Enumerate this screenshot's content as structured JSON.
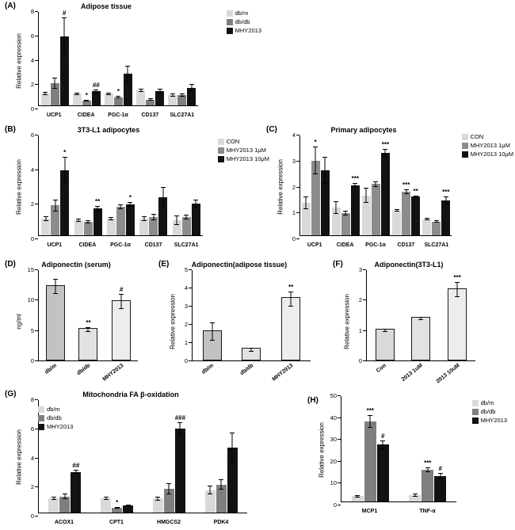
{
  "figure": {
    "background": "#ffffff",
    "series_colors": {
      "light_gray": "#d9d9d9",
      "mid_gray": "#7f7f7f",
      "black": "#121212"
    }
  },
  "chart_data": [
    {
      "panel": "(A)",
      "type": "bar",
      "title": "Adipose tissue",
      "ylabel": "Relative expression",
      "ylim": [
        0,
        8
      ],
      "yticks": [
        0,
        2,
        4,
        6,
        8
      ],
      "categories": [
        "UCP1",
        "CIDEA",
        "PGC-1α",
        "CD137",
        "SLC27A1"
      ],
      "legend": {
        "position": "right"
      },
      "series": [
        {
          "name": "db/m",
          "color": "#d9d9d9",
          "values": [
            1.0,
            1.0,
            1.0,
            1.3,
            0.9
          ],
          "errors": [
            0.15,
            0.1,
            0.1,
            0.15,
            0.12
          ],
          "annotations": [
            "",
            "",
            "",
            "",
            ""
          ]
        },
        {
          "name": "db/db",
          "color": "#7f7f7f",
          "values": [
            1.9,
            0.4,
            0.7,
            0.5,
            0.9
          ],
          "errors": [
            0.45,
            0.05,
            0.1,
            0.08,
            0.15
          ],
          "annotations": [
            "",
            "*",
            "*",
            "",
            ""
          ]
        },
        {
          "name": "MHY2013",
          "color": "#121212",
          "values": [
            5.9,
            1.2,
            2.7,
            1.2,
            1.5
          ],
          "errors": [
            1.6,
            0.15,
            0.7,
            0.25,
            0.3
          ],
          "annotations": [
            "#",
            "##",
            "",
            "",
            ""
          ]
        }
      ]
    },
    {
      "panel": "(B)",
      "type": "bar",
      "title": "3T3-L1 adipocytes",
      "ylabel": "Relative expression",
      "ylim": [
        0,
        6
      ],
      "yticks": [
        0,
        2,
        4,
        6
      ],
      "categories": [
        "UCP1",
        "CIDEA",
        "PGC-1α",
        "CD137",
        "SLC27A1"
      ],
      "legend": {
        "position": "right"
      },
      "series": [
        {
          "name": "CON",
          "color": "#d9d9d9",
          "values": [
            1.0,
            0.9,
            1.0,
            1.0,
            0.9
          ],
          "errors": [
            0.15,
            0.1,
            0.1,
            0.15,
            0.3
          ],
          "annotations": [
            "",
            "",
            "",
            "",
            ""
          ]
        },
        {
          "name": "MHY2013 1μM",
          "color": "#8c8c8c",
          "values": [
            1.8,
            0.8,
            1.7,
            1.1,
            1.1
          ],
          "errors": [
            0.35,
            0.1,
            0.15,
            0.2,
            0.15
          ],
          "annotations": [
            "",
            "",
            "",
            "",
            ""
          ]
        },
        {
          "name": "MHY2013 10μM",
          "color": "#121212",
          "values": [
            3.9,
            1.6,
            1.85,
            2.3,
            1.9
          ],
          "errors": [
            0.8,
            0.15,
            0.15,
            0.6,
            0.25
          ],
          "annotations": [
            "*",
            "**",
            "*",
            "",
            ""
          ]
        }
      ]
    },
    {
      "panel": "(C)",
      "type": "bar",
      "title": "Primary adipocytes",
      "ylabel": "Relative expression",
      "ylim": [
        0,
        4
      ],
      "yticks": [
        0,
        1,
        2,
        3,
        4
      ],
      "categories": [
        "UCP1",
        "CIDEA",
        "PGC-1α",
        "CD137",
        "SLC27A1"
      ],
      "legend": {
        "position": "right"
      },
      "series": [
        {
          "name": "CON",
          "color": "#d9d9d9",
          "values": [
            1.3,
            1.1,
            1.6,
            1.0,
            0.65
          ],
          "errors": [
            0.25,
            0.25,
            0.3,
            0.05,
            0.05
          ],
          "annotations": [
            "",
            "",
            "",
            "",
            ""
          ]
        },
        {
          "name": "MHY2013 1μM",
          "color": "#8c8c8c",
          "values": [
            3.0,
            0.9,
            2.05,
            1.75,
            0.55
          ],
          "errors": [
            0.55,
            0.1,
            0.1,
            0.1,
            0.05
          ],
          "annotations": [
            "*",
            "",
            "",
            "***",
            ""
          ]
        },
        {
          "name": "MHY2013 10μM",
          "color": "#121212",
          "values": [
            2.6,
            2.0,
            3.3,
            1.55,
            1.4
          ],
          "errors": [
            0.55,
            0.1,
            0.15,
            0.05,
            0.15
          ],
          "annotations": [
            "",
            "***",
            "***",
            "**",
            "***"
          ]
        }
      ]
    },
    {
      "panel": "(D)",
      "type": "bar",
      "title": "Adiponectin (serum)",
      "ylabel": "ng/ml",
      "ylim": [
        0,
        15
      ],
      "yticks": [
        0,
        5,
        10,
        15
      ],
      "xlabel_rotate": true,
      "bars": [
        {
          "label": "db/m",
          "value": 12.3,
          "error": 1.2,
          "annotation": "",
          "pattern": "diag",
          "color": "#c2c2c2"
        },
        {
          "label": "db/db",
          "value": 5.1,
          "error": 0.4,
          "annotation": "**",
          "pattern": "cross",
          "color": "#e2e2e2"
        },
        {
          "label": "MHY2013",
          "value": 9.8,
          "error": 1.2,
          "annotation": "#",
          "pattern": "hlines",
          "color": "#ededed"
        }
      ]
    },
    {
      "panel": "(E)",
      "type": "bar",
      "title": "Adiponectin(adipose tissue)",
      "ylabel": "Relative expression",
      "ylim": [
        0,
        5
      ],
      "yticks": [
        0,
        1,
        2,
        3,
        4,
        5
      ],
      "xlabel_rotate": true,
      "bars": [
        {
          "label": "db/m",
          "value": 1.6,
          "error": 0.5,
          "annotation": "",
          "pattern": "diag",
          "color": "#c2c2c2"
        },
        {
          "label": "db/db",
          "value": 0.6,
          "error": 0.1,
          "annotation": "",
          "pattern": "cross",
          "color": "#e2e2e2"
        },
        {
          "label": "MHY2013",
          "value": 3.4,
          "error": 0.4,
          "annotation": "**",
          "pattern": "hlines",
          "color": "#ededed"
        }
      ]
    },
    {
      "panel": "(F)",
      "type": "bar",
      "title": "Adiponectin(3T3-L1)",
      "ylabel": "Relative expression",
      "ylim": [
        0,
        3
      ],
      "yticks": [
        0,
        1,
        2,
        3
      ],
      "xlabel_rotate": true,
      "bars": [
        {
          "label": "Con",
          "value": 1.0,
          "error": 0.05,
          "annotation": "",
          "pattern": "solid",
          "color": "#d9d9d9"
        },
        {
          "label": "2013 1uM",
          "value": 1.4,
          "error": 0.05,
          "annotation": "",
          "pattern": "cross",
          "color": "#e2e2e2"
        },
        {
          "label": "2013 10uM",
          "value": 2.35,
          "error": 0.25,
          "annotation": "***",
          "pattern": "hlines",
          "color": "#ededed"
        }
      ]
    },
    {
      "panel": "(G)",
      "type": "bar",
      "title": "Mitochondria FA β-oxidation",
      "ylabel": "Relative expression",
      "ylim": [
        0,
        8
      ],
      "yticks": [
        0,
        2,
        4,
        6,
        8
      ],
      "categories": [
        "ACOX1",
        "CPT1",
        "HMGCS2",
        "PDK4"
      ],
      "legend": {
        "position": "topleft"
      },
      "series": [
        {
          "name": "db/m",
          "color": "#d9d9d9",
          "values": [
            1.0,
            1.0,
            1.0,
            1.6
          ],
          "errors": [
            0.1,
            0.1,
            0.15,
            0.3
          ],
          "annotations": [
            "",
            "",
            "",
            ""
          ]
        },
        {
          "name": "db/db",
          "color": "#7f7f7f",
          "values": [
            1.15,
            0.35,
            1.7,
            2.0
          ],
          "errors": [
            0.2,
            0.05,
            0.4,
            0.35
          ],
          "annotations": [
            "",
            "*",
            "",
            ""
          ]
        },
        {
          "name": "MHY2013",
          "color": "#121212",
          "values": [
            2.9,
            0.5,
            6.0,
            4.6
          ],
          "errors": [
            0.15,
            0.05,
            0.4,
            1.1
          ],
          "annotations": [
            "##",
            "",
            "###",
            ""
          ]
        }
      ]
    },
    {
      "panel": "(H)",
      "type": "bar",
      "title": "",
      "ylabel": "Relative expression",
      "ylim": [
        0,
        50
      ],
      "yticks": [
        0,
        10,
        20,
        30,
        40,
        50
      ],
      "categories": [
        "MCP1",
        "TNF-α"
      ],
      "legend": {
        "position": "right"
      },
      "series": [
        {
          "name": "db/m",
          "color": "#d9d9d9",
          "values": [
            2.5,
            3.0
          ],
          "errors": [
            0.5,
            0.6
          ],
          "annotations": [
            "",
            ""
          ]
        },
        {
          "name": "db/db",
          "color": "#7f7f7f",
          "values": [
            38,
            15
          ],
          "errors": [
            3,
            1
          ],
          "annotations": [
            "***",
            "***"
          ]
        },
        {
          "name": "MHY2013",
          "color": "#121212",
          "values": [
            27,
            12
          ],
          "errors": [
            2,
            1.5
          ],
          "annotations": [
            "#",
            "#"
          ]
        }
      ]
    }
  ]
}
